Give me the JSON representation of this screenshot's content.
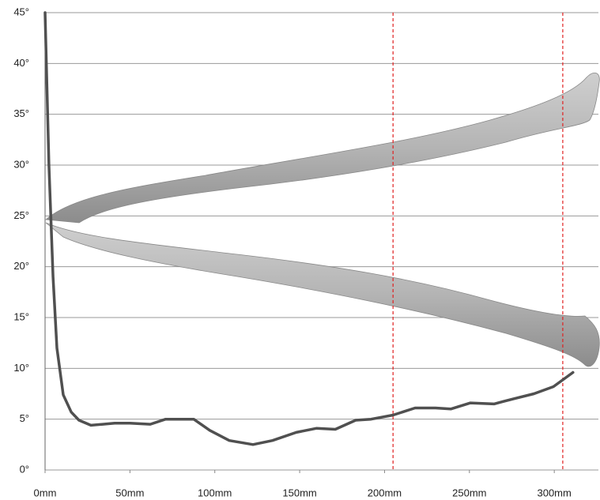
{
  "chart_data": {
    "type": "line",
    "x": [
      0,
      2.3,
      4.7,
      7,
      10.7,
      15.4,
      20,
      27,
      34,
      41,
      50,
      62,
      71,
      80.6,
      87.6,
      97,
      108.5,
      122.5,
      134,
      148,
      160,
      171,
      183,
      192,
      205,
      218,
      230,
      239,
      250.6,
      264.5,
      276,
      288,
      299.5,
      311
    ],
    "series": [
      {
        "color": "#505050",
        "values": [
          45,
          30,
          19,
          12,
          7.4,
          5.7,
          4.9,
          4.4,
          4.5,
          4.6,
          4.6,
          4.5,
          5.0,
          5.0,
          5.0,
          3.9,
          2.9,
          2.5,
          2.9,
          3.7,
          4.1,
          4.0,
          4.9,
          5.0,
          5.4,
          6.1,
          6.1,
          6.0,
          6.6,
          6.5,
          7.0,
          7.5,
          8.2,
          9.6
        ]
      }
    ],
    "xlim": [
      0,
      326
    ],
    "ylim": [
      0,
      45
    ],
    "xticks": [
      {
        "value": 0,
        "label": "0mm"
      },
      {
        "value": 50,
        "label": "50mm"
      },
      {
        "value": 100,
        "label": "100mm"
      },
      {
        "value": 150,
        "label": "150mm"
      },
      {
        "value": 200,
        "label": "200mm"
      },
      {
        "value": 250,
        "label": "250mm"
      },
      {
        "value": 300,
        "label": "300mm"
      }
    ],
    "yticks": [
      {
        "value": 0,
        "label": "0°"
      },
      {
        "value": 5,
        "label": "5°"
      },
      {
        "value": 10,
        "label": "10°"
      },
      {
        "value": 15,
        "label": "15°"
      },
      {
        "value": 20,
        "label": "20°"
      },
      {
        "value": 25,
        "label": "25°"
      },
      {
        "value": 30,
        "label": "30°"
      },
      {
        "value": 35,
        "label": "35°"
      },
      {
        "value": 40,
        "label": "40°"
      },
      {
        "value": 45,
        "label": "45°"
      }
    ],
    "grid": true,
    "reference_lines": [
      205,
      305
    ],
    "reference_line_color": "#e02020"
  }
}
